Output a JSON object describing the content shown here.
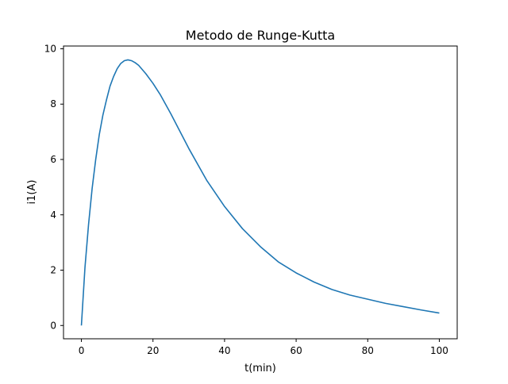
{
  "chart_data": {
    "type": "line",
    "title": "Metodo de Runge-Kutta",
    "xlabel": "t(min)",
    "ylabel": "i1(A)",
    "xlim": [
      -5,
      105
    ],
    "ylim": [
      -0.48,
      10.1
    ],
    "xticks": [
      0,
      20,
      40,
      60,
      80,
      100
    ],
    "yticks": [
      0,
      2,
      4,
      6,
      8,
      10
    ],
    "grid": false,
    "legend": "none",
    "series": [
      {
        "color": "#1f77b4",
        "x": [
          0,
          1,
          2,
          3,
          4,
          5,
          6,
          7,
          8,
          9,
          10,
          11,
          12,
          13,
          14,
          15,
          16,
          18,
          20,
          22,
          25,
          28,
          30,
          35,
          40,
          45,
          50,
          55,
          60,
          65,
          70,
          75,
          80,
          85,
          90,
          95,
          100
        ],
        "y": [
          0,
          2.1,
          3.65,
          4.95,
          6.0,
          6.9,
          7.6,
          8.15,
          8.65,
          9.0,
          9.28,
          9.47,
          9.57,
          9.6,
          9.57,
          9.5,
          9.4,
          9.1,
          8.75,
          8.35,
          7.65,
          6.9,
          6.4,
          5.25,
          4.3,
          3.5,
          2.85,
          2.3,
          1.9,
          1.57,
          1.3,
          1.1,
          0.95,
          0.8,
          0.68,
          0.56,
          0.45
        ]
      }
    ]
  }
}
